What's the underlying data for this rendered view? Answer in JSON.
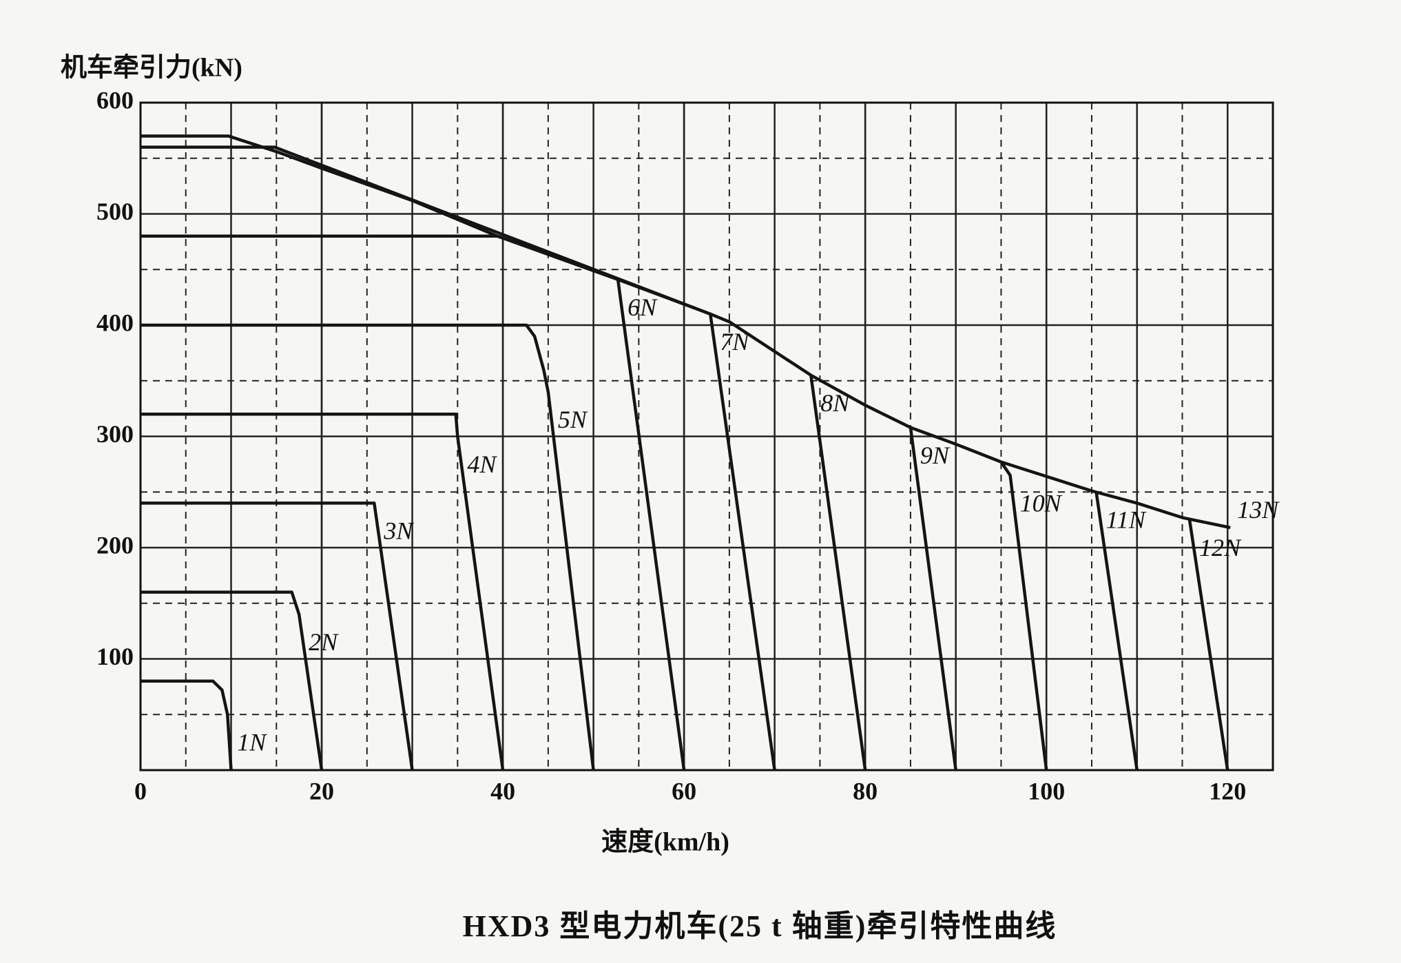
{
  "chart_data": {
    "type": "line",
    "title": "HXD3 型电力机车(25 t 轴重)牵引特性曲线",
    "x_label": "速度(km/h)",
    "y_label": "机车牵引力(kN)",
    "xlim": [
      0,
      125
    ],
    "ylim": [
      0,
      600
    ],
    "xticks": [
      0,
      20,
      40,
      60,
      80,
      100,
      120
    ],
    "yticks": [
      100,
      200,
      300,
      400,
      500,
      600
    ],
    "grid": true,
    "series": [
      {
        "name": "1N",
        "color": "#151515",
        "x": [
          0,
          8,
          9,
          9.6,
          10
        ],
        "values": [
          80,
          80,
          72,
          50,
          0
        ]
      },
      {
        "name": "2N",
        "color": "#151515",
        "x": [
          0,
          16.7,
          17.5,
          20
        ],
        "values": [
          160,
          160,
          140,
          0
        ]
      },
      {
        "name": "3N",
        "color": "#151515",
        "x": [
          0,
          25.8,
          30
        ],
        "values": [
          240,
          240,
          0
        ]
      },
      {
        "name": "4N",
        "color": "#151515",
        "x": [
          0,
          34.8,
          35,
          40
        ],
        "values": [
          320,
          320,
          300,
          0
        ]
      },
      {
        "name": "5N",
        "color": "#151515",
        "x": [
          0,
          42.6,
          43.5,
          44.5,
          45,
          50
        ],
        "values": [
          400,
          400,
          390,
          360,
          340,
          0
        ]
      },
      {
        "name": "6N",
        "color": "#151515",
        "x": [
          0,
          39.4,
          52.7,
          60
        ],
        "values": [
          480,
          480,
          441,
          0
        ]
      },
      {
        "name": "7N",
        "color": "#151515",
        "x": [
          0,
          14.8,
          62.9,
          70
        ],
        "values": [
          560,
          560,
          410,
          0
        ]
      },
      {
        "name": "8N",
        "color": "#151515",
        "x": [
          74,
          80
        ],
        "values": [
          355,
          0
        ]
      },
      {
        "name": "9N",
        "color": "#151515",
        "x": [
          85,
          90
        ],
        "values": [
          308,
          0
        ]
      },
      {
        "name": "10N",
        "color": "#151515",
        "x": [
          95,
          96,
          100
        ],
        "values": [
          277,
          265,
          0
        ]
      },
      {
        "name": "11N",
        "color": "#151515",
        "x": [
          105.5,
          110
        ],
        "values": [
          250,
          0
        ]
      },
      {
        "name": "12N",
        "color": "#151515",
        "x": [
          115.8,
          120
        ],
        "values": [
          225,
          0
        ]
      },
      {
        "name": "13N",
        "color": "#151515",
        "x": [
          0,
          9.7,
          15,
          20,
          30,
          39.4,
          50,
          52.7,
          62.9,
          65,
          74,
          80,
          85,
          90,
          95,
          100,
          105,
          110,
          115,
          120.3
        ],
        "values": [
          570,
          570,
          556,
          541,
          512,
          480,
          450,
          441,
          410,
          403,
          355,
          328,
          308,
          293,
          277,
          264,
          251,
          240,
          227,
          218
        ]
      }
    ]
  }
}
